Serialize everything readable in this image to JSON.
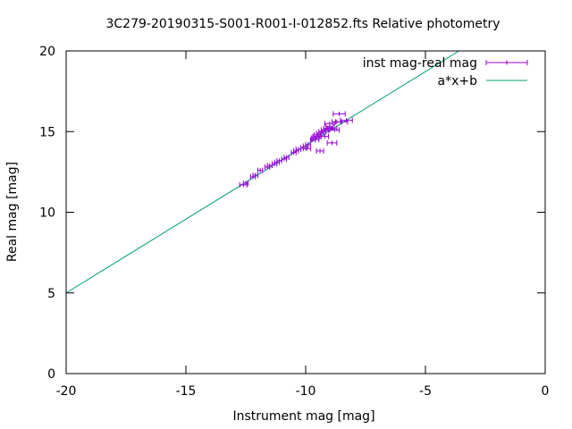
{
  "chart_data": {
    "type": "scatter",
    "title": "3C279-20190315-S001-R001-I-012852.fts Relative photometry",
    "xlabel": "Instrument mag [mag]",
    "ylabel": "Real mag [mag]",
    "xlim": [
      -20,
      0
    ],
    "ylim": [
      0,
      20
    ],
    "x_ticks": [
      -20,
      -15,
      -10,
      -5,
      0
    ],
    "y_ticks": [
      0,
      5,
      10,
      15,
      20
    ],
    "x_tick_labels": [
      "-20",
      "-15",
      "-10",
      "-5",
      "0"
    ],
    "y_tick_labels": [
      "0",
      "5",
      "10",
      "15",
      "20"
    ],
    "grid": false,
    "legend_position": "top-right",
    "legend": [
      "inst mag-real mag",
      "a*x+b"
    ],
    "colors": {
      "points": "#9400d3",
      "fit": "#009e73",
      "axes": "#000000"
    },
    "series": [
      {
        "name": "inst mag-real mag",
        "style": "points-with-x-errorbars",
        "points": [
          {
            "x": -12.6,
            "y": 11.7,
            "xerr": 0.15
          },
          {
            "x": -12.5,
            "y": 11.8,
            "xerr": 0.1
          },
          {
            "x": -12.2,
            "y": 12.2,
            "xerr": 0.1
          },
          {
            "x": -12.1,
            "y": 12.3,
            "xerr": 0.1
          },
          {
            "x": -11.9,
            "y": 12.6,
            "xerr": 0.1
          },
          {
            "x": -11.6,
            "y": 12.8,
            "xerr": 0.1
          },
          {
            "x": -11.5,
            "y": 12.9,
            "xerr": 0.1
          },
          {
            "x": -11.3,
            "y": 13.0,
            "xerr": 0.1
          },
          {
            "x": -11.2,
            "y": 13.1,
            "xerr": 0.1
          },
          {
            "x": -11.1,
            "y": 13.2,
            "xerr": 0.1
          },
          {
            "x": -10.9,
            "y": 13.3,
            "xerr": 0.1
          },
          {
            "x": -10.8,
            "y": 13.4,
            "xerr": 0.1
          },
          {
            "x": -10.5,
            "y": 13.7,
            "xerr": 0.1
          },
          {
            "x": -10.4,
            "y": 13.8,
            "xerr": 0.1
          },
          {
            "x": -10.3,
            "y": 13.9,
            "xerr": 0.1
          },
          {
            "x": -10.1,
            "y": 14.0,
            "xerr": 0.1
          },
          {
            "x": -10.0,
            "y": 14.1,
            "xerr": 0.1
          },
          {
            "x": -9.9,
            "y": 14.2,
            "xerr": 0.1
          },
          {
            "x": -9.95,
            "y": 13.95,
            "xerr": 0.15
          },
          {
            "x": -9.7,
            "y": 14.5,
            "xerr": 0.1
          },
          {
            "x": -9.6,
            "y": 14.6,
            "xerr": 0.15
          },
          {
            "x": -9.55,
            "y": 14.7,
            "xerr": 0.15
          },
          {
            "x": -9.5,
            "y": 14.8,
            "xerr": 0.15
          },
          {
            "x": -9.4,
            "y": 14.9,
            "xerr": 0.15
          },
          {
            "x": -9.3,
            "y": 15.0,
            "xerr": 0.15
          },
          {
            "x": -9.2,
            "y": 15.1,
            "xerr": 0.15
          },
          {
            "x": -9.2,
            "y": 14.7,
            "xerr": 0.15
          },
          {
            "x": -9.1,
            "y": 15.2,
            "xerr": 0.15
          },
          {
            "x": -9.0,
            "y": 15.3,
            "xerr": 0.15
          },
          {
            "x": -8.9,
            "y": 15.2,
            "xerr": 0.2
          },
          {
            "x": -8.8,
            "y": 15.1,
            "xerr": 0.2
          },
          {
            "x": -9.0,
            "y": 15.5,
            "xerr": 0.2
          },
          {
            "x": -8.7,
            "y": 15.6,
            "xerr": 0.2
          },
          {
            "x": -8.5,
            "y": 15.6,
            "xerr": 0.25
          },
          {
            "x": -8.3,
            "y": 15.7,
            "xerr": 0.25
          },
          {
            "x": -8.6,
            "y": 16.1,
            "xerr": 0.25
          },
          {
            "x": -9.4,
            "y": 13.8,
            "xerr": 0.15
          },
          {
            "x": -8.9,
            "y": 14.3,
            "xerr": 0.2
          },
          {
            "x": -9.6,
            "y": 14.5,
            "xerr": 0.15
          }
        ]
      },
      {
        "name": "a*x+b",
        "style": "line",
        "x": [
          -20,
          -3.6
        ],
        "y": [
          5.0,
          20.0
        ]
      }
    ]
  }
}
